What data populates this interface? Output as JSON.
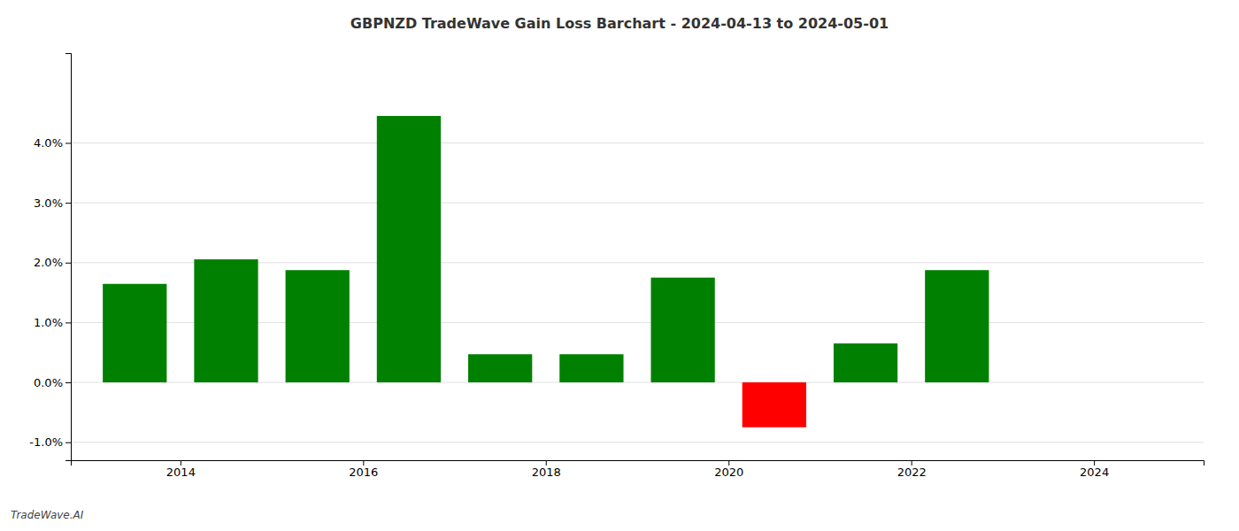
{
  "chart_data": {
    "type": "bar",
    "title": "GBPNZD TradeWave Gain Loss Barchart - 2024-04-13 to 2024-05-01",
    "annotations": [
      "TradeWave.AI"
    ],
    "x": [
      2013.5,
      2014.5,
      2015.5,
      2016.5,
      2017.5,
      2018.5,
      2019.5,
      2020.5,
      2021.5,
      2022.5
    ],
    "values": [
      0.01645,
      0.02055,
      0.01875,
      0.0445,
      0.0047,
      0.0047,
      0.0175,
      -0.0075,
      0.0065,
      0.01875
    ],
    "colors": [
      "#008000",
      "#008000",
      "#008000",
      "#008000",
      "#008000",
      "#008000",
      "#008000",
      "#ff0000",
      "#008000",
      "#008000"
    ],
    "xlim": [
      2012.8,
      2025.2
    ],
    "xticks": [
      2014,
      2016,
      2018,
      2020,
      2022,
      2024
    ],
    "ylim": [
      -0.013,
      0.055
    ],
    "yticks": [
      {
        "value": -0.01,
        "label": "-1.0%"
      },
      {
        "value": 0.0,
        "label": "0.0%"
      },
      {
        "value": 0.01,
        "label": "1.0%"
      },
      {
        "value": 0.02,
        "label": "2.0%"
      },
      {
        "value": 0.03,
        "label": "3.0%"
      },
      {
        "value": 0.04,
        "label": "4.0%"
      }
    ],
    "grid": true
  }
}
